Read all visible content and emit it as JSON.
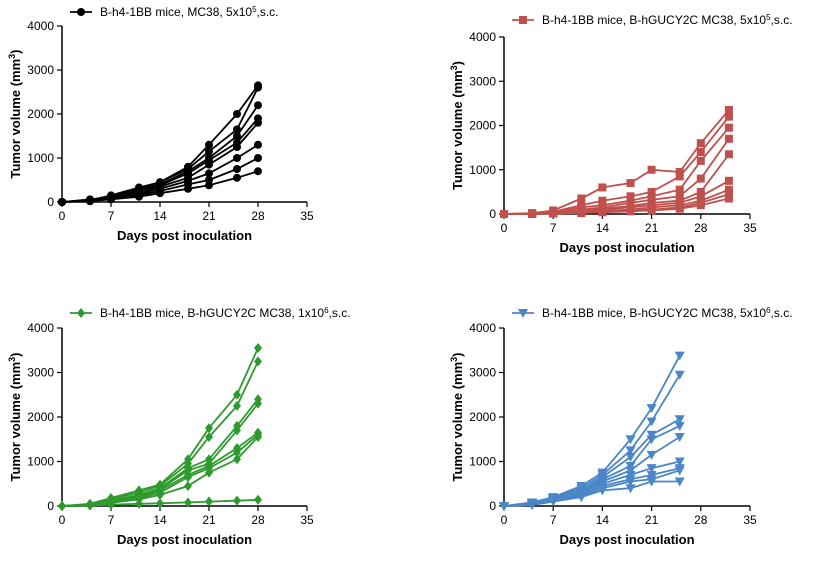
{
  "chart_data": [
    {
      "type": "line",
      "color": "#000000",
      "marker": "circle",
      "legend": {
        "label": "B-h4-1BB mice, MC38, 5x10",
        "sup": "5",
        "suffix": ",s.c."
      },
      "ylabel": {
        "main": "Tumor volume (mm",
        "sup": "3",
        "close": ")"
      },
      "xlabel": "Days post inoculation",
      "xlim": [
        0,
        35
      ],
      "ylim": [
        0,
        4000
      ],
      "xticks": [
        0,
        7,
        14,
        21,
        28,
        35
      ],
      "yticks": [
        0,
        1000,
        2000,
        3000,
        4000
      ],
      "x": [
        0,
        4,
        7,
        11,
        14,
        18,
        21,
        25,
        28
      ],
      "series": [
        {
          "values": [
            0,
            50,
            120,
            300,
            450,
            800,
            1300,
            2000,
            2650
          ]
        },
        {
          "values": [
            0,
            40,
            150,
            330,
            450,
            750,
            1150,
            1650,
            2600
          ]
        },
        {
          "values": [
            0,
            30,
            130,
            280,
            400,
            700,
            1000,
            1500,
            2200
          ]
        },
        {
          "values": [
            0,
            60,
            100,
            250,
            380,
            650,
            950,
            1350,
            1900
          ]
        },
        {
          "values": [
            0,
            20,
            110,
            200,
            350,
            550,
            850,
            1250,
            1800
          ]
        },
        {
          "values": [
            0,
            40,
            90,
            180,
            300,
            480,
            650,
            1000,
            1300
          ]
        },
        {
          "values": [
            0,
            30,
            80,
            150,
            250,
            400,
            500,
            750,
            1000
          ]
        },
        {
          "values": [
            0,
            20,
            60,
            120,
            200,
            300,
            380,
            550,
            700
          ]
        }
      ]
    },
    {
      "type": "line",
      "color": "#c0504d",
      "marker": "square",
      "legend": {
        "label": "B-h4-1BB mice, B-hGUCY2C MC38, 5x10",
        "sup": "5",
        "suffix": ",s.c."
      },
      "ylabel": {
        "main": "Tumor volume (mm",
        "sup": "3",
        "close": ")"
      },
      "xlabel": "Days post inoculation",
      "xlim": [
        0,
        35
      ],
      "ylim": [
        0,
        4000
      ],
      "xticks": [
        0,
        7,
        14,
        21,
        28,
        35
      ],
      "yticks": [
        0,
        1000,
        2000,
        3000,
        4000
      ],
      "x": [
        0,
        4,
        7,
        11,
        14,
        18,
        21,
        25,
        28,
        32
      ],
      "series": [
        {
          "values": [
            0,
            20,
            80,
            350,
            600,
            700,
            1000,
            950,
            1600,
            2350
          ]
        },
        {
          "values": [
            0,
            15,
            50,
            200,
            300,
            400,
            500,
            850,
            1400,
            2200
          ]
        },
        {
          "values": [
            0,
            10,
            40,
            150,
            200,
            300,
            400,
            550,
            1200,
            1950
          ]
        },
        {
          "values": [
            0,
            10,
            30,
            100,
            150,
            250,
            320,
            400,
            800,
            1700
          ]
        },
        {
          "values": [
            0,
            5,
            25,
            80,
            120,
            180,
            250,
            300,
            500,
            1350
          ]
        },
        {
          "values": [
            0,
            5,
            20,
            60,
            100,
            150,
            200,
            250,
            400,
            750
          ]
        },
        {
          "values": [
            0,
            5,
            15,
            40,
            70,
            100,
            150,
            200,
            300,
            550
          ]
        },
        {
          "values": [
            0,
            5,
            10,
            30,
            50,
            80,
            100,
            150,
            250,
            450
          ]
        },
        {
          "values": [
            0,
            5,
            10,
            20,
            40,
            60,
            80,
            120,
            200,
            350
          ]
        }
      ]
    },
    {
      "type": "line",
      "color": "#2e9a2e",
      "marker": "diamond",
      "legend": {
        "label": "B-h4-1BB mice, B-hGUCY2C MC38, 1x10",
        "sup": "6",
        "suffix": ",s.c."
      },
      "ylabel": {
        "main": "Tumor volume (mm",
        "sup": "3",
        "close": ")"
      },
      "xlabel": "Days post inoculation",
      "xlim": [
        0,
        35
      ],
      "ylim": [
        0,
        4000
      ],
      "xticks": [
        0,
        7,
        14,
        21,
        28,
        35
      ],
      "yticks": [
        0,
        1000,
        2000,
        3000,
        4000
      ],
      "x": [
        0,
        4,
        7,
        11,
        14,
        18,
        21,
        25,
        28
      ],
      "series": [
        {
          "values": [
            0,
            50,
            180,
            350,
            480,
            1050,
            1750,
            2500,
            3550
          ]
        },
        {
          "values": [
            0,
            40,
            150,
            300,
            450,
            950,
            1550,
            2250,
            3250
          ]
        },
        {
          "values": [
            0,
            30,
            120,
            250,
            400,
            850,
            1050,
            1800,
            2400
          ]
        },
        {
          "values": [
            0,
            30,
            110,
            230,
            380,
            800,
            950,
            1700,
            2300
          ]
        },
        {
          "values": [
            0,
            20,
            100,
            200,
            350,
            700,
            900,
            1300,
            1650
          ]
        },
        {
          "values": [
            0,
            20,
            90,
            180,
            300,
            650,
            850,
            1200,
            1600
          ]
        },
        {
          "values": [
            0,
            15,
            70,
            150,
            250,
            450,
            750,
            1050,
            1550
          ]
        },
        {
          "values": [
            0,
            10,
            30,
            50,
            60,
            80,
            100,
            120,
            140
          ]
        }
      ]
    },
    {
      "type": "line",
      "color": "#4a86c8",
      "marker": "triangle-down",
      "legend": {
        "label": "B-h4-1BB mice, B-hGUCY2C MC38, 5x10",
        "sup": "6",
        "suffix": ",s.c."
      },
      "ylabel": {
        "main": "Tumor volume (mm",
        "sup": "3",
        "close": ")"
      },
      "xlabel": "Days post inoculation",
      "xlim": [
        0,
        35
      ],
      "ylim": [
        0,
        4000
      ],
      "xticks": [
        0,
        7,
        14,
        21,
        28,
        35
      ],
      "yticks": [
        0,
        1000,
        2000,
        3000,
        4000
      ],
      "x": [
        0,
        4,
        7,
        11,
        14,
        18,
        21,
        25
      ],
      "series": [
        {
          "values": [
            0,
            80,
            200,
            450,
            750,
            1500,
            2200,
            3380
          ]
        },
        {
          "values": [
            0,
            70,
            180,
            400,
            700,
            1250,
            1900,
            2950
          ]
        },
        {
          "values": [
            0,
            60,
            160,
            350,
            650,
            1100,
            1600,
            1950
          ]
        },
        {
          "values": [
            0,
            50,
            150,
            320,
            600,
            900,
            1500,
            1800
          ]
        },
        {
          "values": [
            0,
            50,
            140,
            300,
            550,
            800,
            1150,
            1550
          ]
        },
        {
          "values": [
            0,
            40,
            130,
            280,
            500,
            700,
            850,
            1000
          ]
        },
        {
          "values": [
            0,
            30,
            120,
            250,
            450,
            600,
            700,
            850
          ]
        },
        {
          "values": [
            0,
            30,
            110,
            220,
            400,
            550,
            600,
            800
          ]
        },
        {
          "values": [
            0,
            20,
            100,
            200,
            350,
            400,
            550,
            550
          ]
        }
      ]
    }
  ]
}
